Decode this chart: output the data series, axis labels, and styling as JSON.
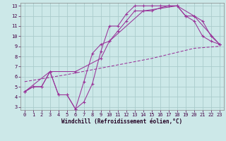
{
  "xlabel": "Windchill (Refroidissement éolien,°C)",
  "background_color": "#cce8e8",
  "grid_color": "#aacccc",
  "line_color": "#993399",
  "xlim_min": -0.5,
  "xlim_max": 23.5,
  "ylim_min": 2.7,
  "ylim_max": 13.3,
  "xticks": [
    0,
    1,
    2,
    3,
    4,
    5,
    6,
    7,
    8,
    9,
    10,
    11,
    12,
    13,
    14,
    15,
    16,
    17,
    18,
    19,
    20,
    21,
    22,
    23
  ],
  "yticks": [
    3,
    4,
    5,
    6,
    7,
    8,
    9,
    10,
    11,
    12,
    13
  ],
  "curve_zigzag_x": [
    0,
    1,
    2,
    3,
    4,
    5,
    6,
    7,
    8,
    9,
    10,
    11,
    12,
    13,
    14,
    15,
    16,
    17,
    18,
    19,
    20,
    21,
    22,
    23
  ],
  "curve_zigzag_y": [
    4.5,
    5.0,
    5.0,
    6.5,
    4.2,
    4.2,
    2.8,
    3.5,
    5.3,
    8.5,
    11.0,
    11.0,
    12.2,
    13.0,
    13.0,
    13.0,
    13.0,
    13.0,
    13.0,
    12.0,
    11.5,
    10.0,
    9.5,
    9.2
  ],
  "curve_smooth_x": [
    0,
    1,
    2,
    3,
    4,
    5,
    6,
    7,
    8,
    9,
    10,
    11,
    12,
    13,
    14,
    15,
    16,
    17,
    18,
    19,
    20,
    21,
    22,
    23
  ],
  "curve_smooth_y": [
    4.5,
    5.0,
    5.0,
    6.5,
    4.2,
    4.2,
    2.8,
    5.5,
    8.3,
    9.2,
    9.5,
    10.5,
    11.5,
    12.5,
    12.5,
    12.5,
    12.8,
    13.0,
    13.0,
    12.0,
    12.0,
    11.5,
    10.0,
    9.2
  ],
  "curve_diag_x": [
    0,
    3,
    6,
    9,
    10,
    14,
    18,
    20,
    23
  ],
  "curve_diag_y": [
    4.5,
    6.5,
    6.5,
    7.8,
    9.5,
    12.5,
    13.0,
    12.0,
    9.2
  ],
  "curve_linear_x": [
    0,
    5,
    10,
    15,
    20,
    23
  ],
  "curve_linear_y": [
    5.5,
    6.2,
    7.0,
    7.8,
    8.8,
    9.0
  ]
}
